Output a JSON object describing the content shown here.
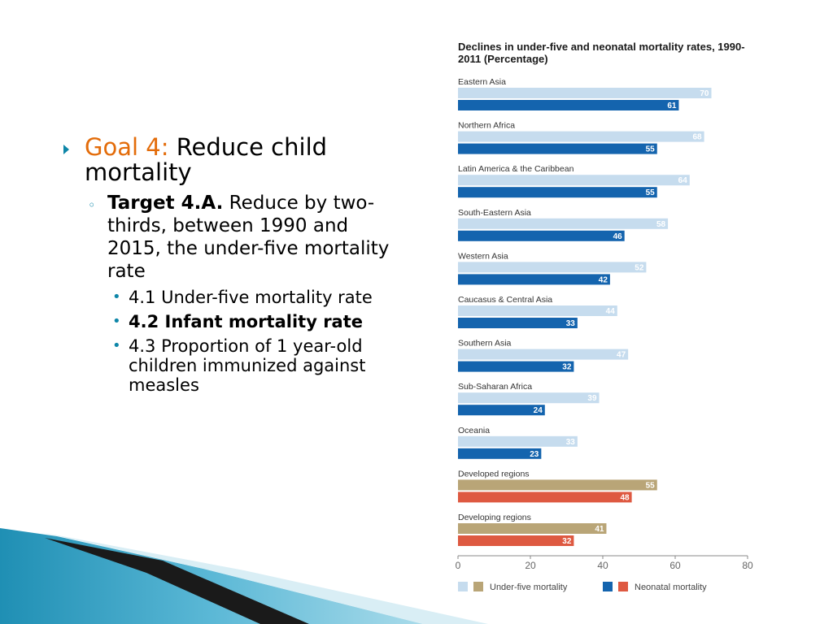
{
  "slide": {
    "goal_label": "Goal 4:",
    "goal_text": "Reduce child mortality",
    "target_label": "Target 4.A.",
    "target_text": "Reduce by two-thirds, between 1990 and 2015, the under-five mortality rate",
    "indicators": [
      {
        "text": "4.1 Under-five mortality rate",
        "bold": false
      },
      {
        "text": "4.2 Infant mortality rate",
        "bold": true
      },
      {
        "text": "4.3 Proportion of 1 year-old children immunized against measles",
        "bold": false
      }
    ]
  },
  "colors": {
    "accent_orange": "#e36c0a",
    "bullet_teal": "#0e86a8",
    "under5_regional": "#c6dcee",
    "neonatal_regional": "#1464ae",
    "under5_group": "#b9a577",
    "neonatal_group": "#de5941"
  },
  "chart_data": {
    "type": "bar",
    "orientation": "horizontal",
    "title": "Declines in under-five and neonatal mortality rates, 1990-2011 (Percentage)",
    "categories": [
      "Eastern Asia",
      "Northern Africa",
      "Latin America & the Caribbean",
      "South-Eastern Asia",
      "Western Asia",
      "Caucasus & Central Asia",
      "Southern Asia",
      "Sub-Saharan Africa",
      "Oceania",
      "Developed regions",
      "Developing regions"
    ],
    "series": [
      {
        "name": "Under-five mortality",
        "values": [
          70,
          68,
          64,
          58,
          52,
          44,
          47,
          39,
          33,
          55,
          41
        ]
      },
      {
        "name": "Neonatal mortality",
        "values": [
          61,
          55,
          55,
          46,
          42,
          33,
          32,
          24,
          23,
          48,
          32
        ]
      }
    ],
    "group_categories": [
      "Developed regions",
      "Developing regions"
    ],
    "xlim": [
      0,
      80
    ],
    "xticks": [
      0,
      20,
      40,
      60,
      80
    ],
    "grid": false,
    "legend": "bottom"
  }
}
